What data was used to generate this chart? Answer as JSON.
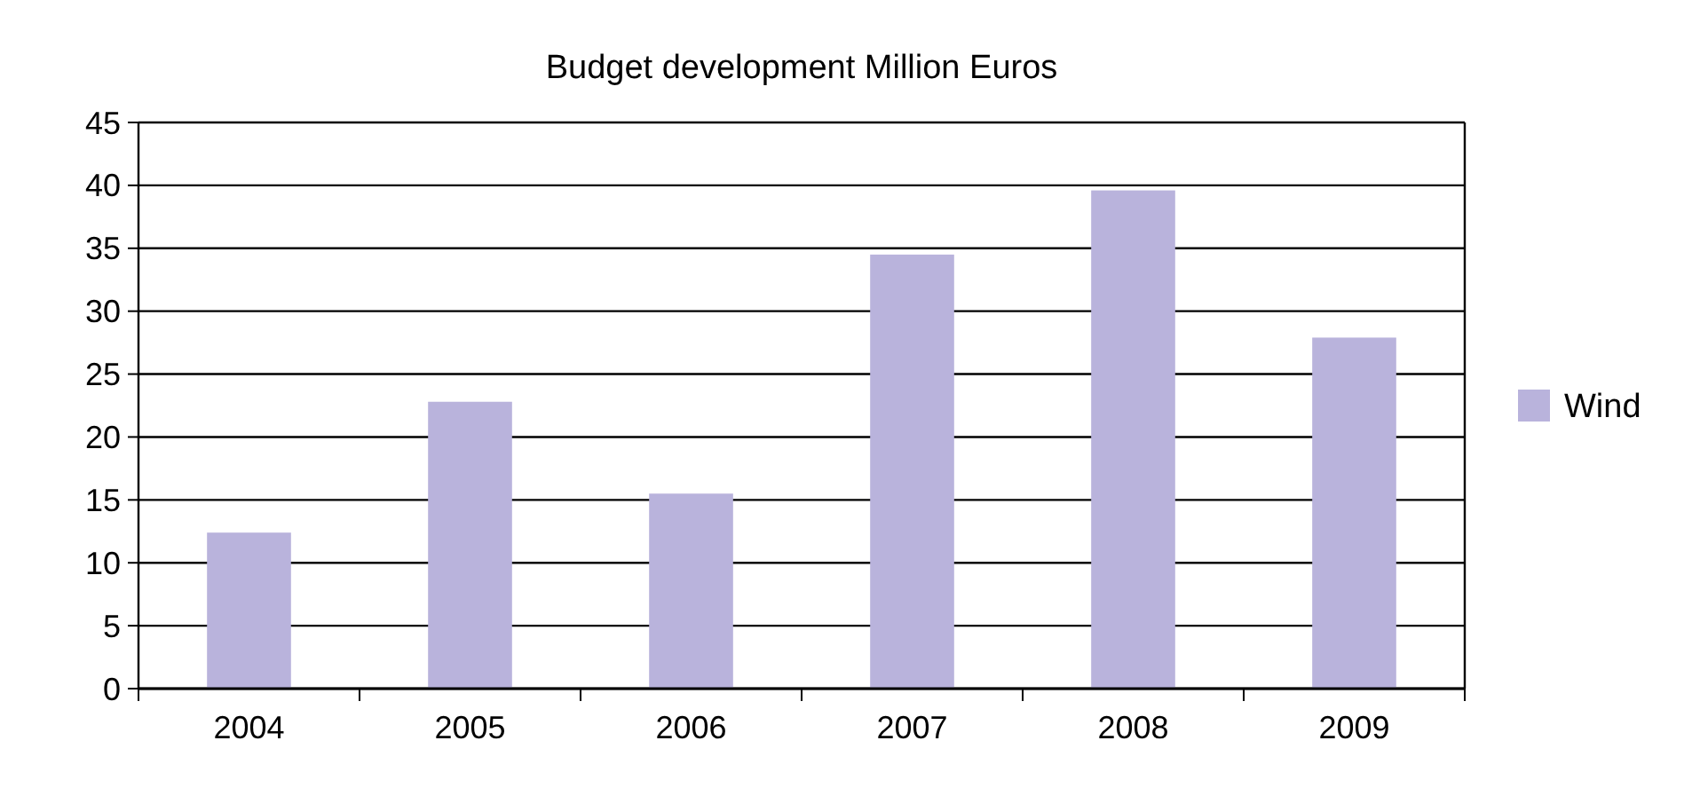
{
  "chart_data": {
    "type": "bar",
    "title": "Budget development Million Euros",
    "categories": [
      "2004",
      "2005",
      "2006",
      "2007",
      "2008",
      "2009"
    ],
    "series": [
      {
        "name": "Wind",
        "color": "#b9b3dc",
        "values": [
          12.4,
          22.8,
          15.5,
          34.5,
          39.6,
          27.9
        ]
      }
    ],
    "ylim": [
      0,
      45
    ],
    "yticks": [
      0,
      5,
      10,
      15,
      20,
      25,
      30,
      35,
      40,
      45
    ],
    "grid": "y",
    "legend": "right"
  }
}
